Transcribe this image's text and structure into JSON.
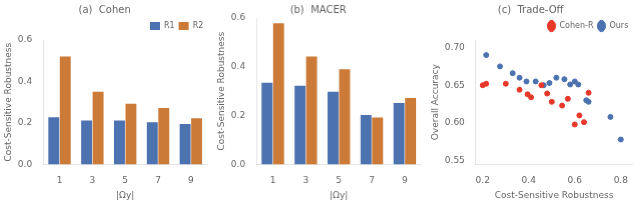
{
  "chart_data": [
    {
      "type": "bar",
      "title": "(a)  Cohen",
      "x_label": "|Ωy|",
      "y_label": "Cost-Sensitive Robustness",
      "categories": [
        "1",
        "3",
        "5",
        "7",
        "9"
      ],
      "series": [
        {
          "name": "R1",
          "color": "#4c72b0",
          "values": [
            0.228,
            0.212,
            0.212,
            0.203,
            0.195
          ]
        },
        {
          "name": "R2",
          "color": "#cc7a38",
          "values": [
            0.52,
            0.35,
            0.292,
            0.272,
            0.222
          ]
        }
      ],
      "ylim": [
        0.0,
        0.6
      ],
      "yticks": [
        {
          "value": 0.0,
          "label": "0.0"
        },
        0.2,
        0.4,
        0.6
      ],
      "grid": false,
      "legend": "upper right"
    },
    {
      "type": "bar",
      "title": "(b)  MACER",
      "x_label": "|Ωy|",
      "y_label": "Cost-Sensitive Robustness",
      "categories": [
        "1",
        "3",
        "5",
        "7",
        "9"
      ],
      "series": [
        {
          "color": "#4c72b0",
          "values": [
            0.335,
            0.322,
            0.298,
            0.202,
            0.252
          ]
        },
        {
          "color": "#cc7a38",
          "values": [
            0.578,
            0.442,
            0.39,
            0.192,
            0.272
          ]
        }
      ],
      "ylim": [
        0.0,
        0.6
      ],
      "yticks": [
        {
          "value": 0.0,
          "label": "0.0"
        },
        0.2,
        0.4,
        0.6
      ],
      "grid": false
    },
    {
      "type": "scatter",
      "title": "(c)  Trade-Off",
      "x_label": "Cost-Sensitive Robustness",
      "y_label": "Overall Accuracy",
      "series": [
        {
          "name": "Cohen-R",
          "color": "#e8382a",
          "x": [
            0.2,
            0.215,
            0.3,
            0.36,
            0.395,
            0.41,
            0.455,
            0.48,
            0.5,
            0.545,
            0.57,
            0.6,
            0.64,
            0.62,
            0.66
          ],
          "values": [
            0.65,
            0.652,
            0.652,
            0.644,
            0.638,
            0.634,
            0.65,
            0.639,
            0.628,
            0.623,
            0.632,
            0.598,
            0.601,
            0.61,
            0.64
          ]
        },
        {
          "name": "Ours",
          "color": "#4c72b0",
          "x": [
            0.215,
            0.275,
            0.33,
            0.36,
            0.39,
            0.43,
            0.465,
            0.49,
            0.52,
            0.555,
            0.58,
            0.6,
            0.615,
            0.65,
            0.66,
            0.755,
            0.8
          ],
          "values": [
            0.69,
            0.675,
            0.666,
            0.66,
            0.655,
            0.655,
            0.65,
            0.653,
            0.66,
            0.658,
            0.651,
            0.655,
            0.651,
            0.63,
            0.628,
            0.608,
            0.578
          ]
        }
      ],
      "xlim": [
        0.17,
        0.85
      ],
      "xticks": [
        0.2,
        0.4,
        0.6,
        0.8
      ],
      "ylim": [
        0.545,
        0.71
      ],
      "yticks": [
        0.55,
        {
          "value": 0.6,
          "label": "0.60"
        },
        0.65,
        {
          "value": 0.7,
          "label": "0.70"
        }
      ],
      "grid": false,
      "legend": "upper right"
    }
  ]
}
